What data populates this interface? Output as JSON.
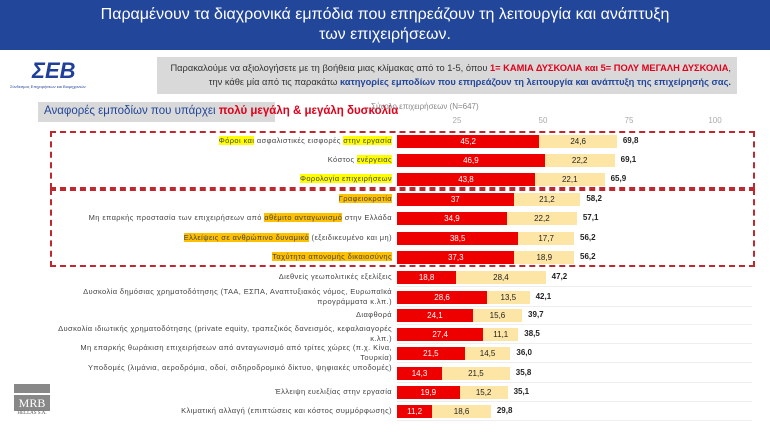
{
  "header": {
    "line1": "Παραμένουν τα διαχρονικά εμπόδια που επηρεάζουν τη λειτουργία και ανάπτυξη",
    "line2": "των επιχειρήσεων."
  },
  "logo": {
    "text": "ΣΕΒ",
    "tagline": "Σύνδεσμος Επιχειρήσεων και Βιομηχανιών"
  },
  "instructions": {
    "p1": "Παρακαλούμε να αξιολογήσετε με τη βοήθεια μιας κλίμακας από το 1-5, όπου ",
    "p2": "1= ΚΑΜΙΑ ΔΥΣΚΟΛΙΑ και 5= ΠΟΛΥ ΜΕΓΑΛΗ ΔΥΣΚΟΛΙΑ",
    ",": ",",
    "p3": "την κάθε μία από τις παρακάτω ",
    "p4": "κατηγορίες εμποδίων που επηρεάζουν τη λειτουργία και ανάπτυξη της επιχείρησής σας."
  },
  "subtitle": {
    "a": "Αναφορές εμποδίων που υπάρχει ",
    "b": "πολύ μεγάλη & μεγάλη δυσκολία"
  },
  "footer_logo": {
    "name": "MRB",
    "sub": "HELLAS S.A."
  },
  "chart_data": {
    "type": "bar",
    "stacked": true,
    "orientation": "horizontal",
    "note": "Σύνολο επιχειρήσεων (N=647)",
    "xticks": [
      25,
      50,
      75,
      100
    ],
    "xlim": [
      0,
      100
    ],
    "colors": {
      "very_high": "#ee0000",
      "high": "#fde5a5"
    },
    "categories": [
      {
        "parts": [
          [
            "Φόροι και",
            "y"
          ],
          [
            " ασφαλιστικές εισφορές ",
            ""
          ],
          [
            "στην εργασία",
            "y"
          ]
        ],
        "v1": 45.2,
        "v2": 24.6,
        "total": 69.8
      },
      {
        "parts": [
          [
            "Κόστος ",
            ""
          ],
          [
            "ενέργειας",
            "y"
          ]
        ],
        "v1": 46.9,
        "v2": 22.2,
        "total": 69.1
      },
      {
        "parts": [
          [
            "Φορολογία επιχειρήσεων",
            "y"
          ]
        ],
        "v1": 43.8,
        "v2": 22.1,
        "total": 65.9
      },
      {
        "parts": [
          [
            "Γραφειοκρατία",
            "o"
          ]
        ],
        "v1": 37,
        "v2": 21.2,
        "total": 58.2
      },
      {
        "parts": [
          [
            "Μη επαρκής προστασία των επιχειρήσεων από ",
            ""
          ],
          [
            "αθέμιτο ανταγωνισμό",
            "o"
          ],
          [
            " στην Ελλάδα",
            ""
          ]
        ],
        "v1": 34.9,
        "v2": 22.2,
        "total": 57.1
      },
      {
        "parts": [
          [
            "Ελλείψεις σε ανθρώπινο δυναμικό",
            "o"
          ],
          [
            " (εξειδικευμένο και μη)",
            ""
          ]
        ],
        "v1": 38.5,
        "v2": 17.7,
        "total": 56.2
      },
      {
        "parts": [
          [
            "Ταχύτητα απονομής δικαιοσύνης",
            "o"
          ]
        ],
        "v1": 37.3,
        "v2": 18.9,
        "total": 56.2
      },
      {
        "parts": [
          [
            "Διεθνείς γεωπολιτικές εξελίξεις",
            ""
          ]
        ],
        "v1": 18.8,
        "v2": 28.4,
        "total": 47.2
      },
      {
        "parts": [
          [
            "Δυσκολία δημόσιας χρηματοδότησης (ΤΑΑ, ΕΣΠΑ, Αναπτυξιακός νόμος, Ευρωπαϊκά προγράμματα κ.λπ.)",
            ""
          ]
        ],
        "v1": 28.6,
        "v2": 13.5,
        "total": 42.1
      },
      {
        "parts": [
          [
            "Διαφθορά",
            ""
          ]
        ],
        "v1": 24.1,
        "v2": 15.6,
        "total": 39.7
      },
      {
        "parts": [
          [
            "Δυσκολία ιδιωτικής χρηματοδότησης (private equity, τραπεζικός δανεισμός, κεφαλαιαγορές κ.λπ.)",
            ""
          ]
        ],
        "v1": 27.4,
        "v2": 11.1,
        "total": 38.5
      },
      {
        "parts": [
          [
            "Μη επαρκής θωράκιση επιχειρήσεων από ανταγωνισμό από τρίτες χώρες (π.χ. Κίνα, Τουρκία)",
            ""
          ]
        ],
        "v1": 21.5,
        "v2": 14.5,
        "total": "36,0"
      },
      {
        "parts": [
          [
            "Υποδομές (λιμάνια, αεροδρόμια, οδοί, σιδηροδρομικό δίκτυο, ψηφιακές υποδομές)",
            ""
          ]
        ],
        "v1": 14.3,
        "v2": 21.5,
        "total": 35.8
      },
      {
        "parts": [
          [
            "Έλλειψη ευελιξίας στην εργασία",
            ""
          ]
        ],
        "v1": 19.9,
        "v2": 15.2,
        "total": 35.1
      },
      {
        "parts": [
          [
            "Κλιματική αλλαγή (επιπτώσεις και κόστος συμμόρφωσης)",
            ""
          ]
        ],
        "v1": 11.2,
        "v2": 18.6,
        "total": 29.8
      }
    ]
  }
}
